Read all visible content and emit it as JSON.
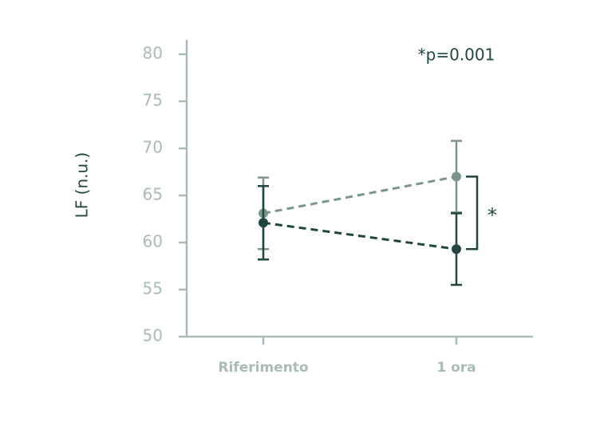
{
  "chart_data": {
    "type": "line",
    "y_label": "LF (n.u.)",
    "annotation": "*p=0.001",
    "significance": "*",
    "categories": [
      "Riferimento",
      "1 ora"
    ],
    "series": [
      {
        "color": "#7b958d",
        "values": [
          63.1,
          67.0
        ],
        "error": [
          3.8,
          3.8
        ]
      },
      {
        "color": "#1f4641",
        "values": [
          62.1,
          59.3
        ],
        "error": [
          3.9,
          3.8
        ]
      }
    ],
    "ylim": [
      50,
      80
    ],
    "yticks": [
      50,
      55,
      60,
      65,
      70,
      75,
      80
    ]
  }
}
